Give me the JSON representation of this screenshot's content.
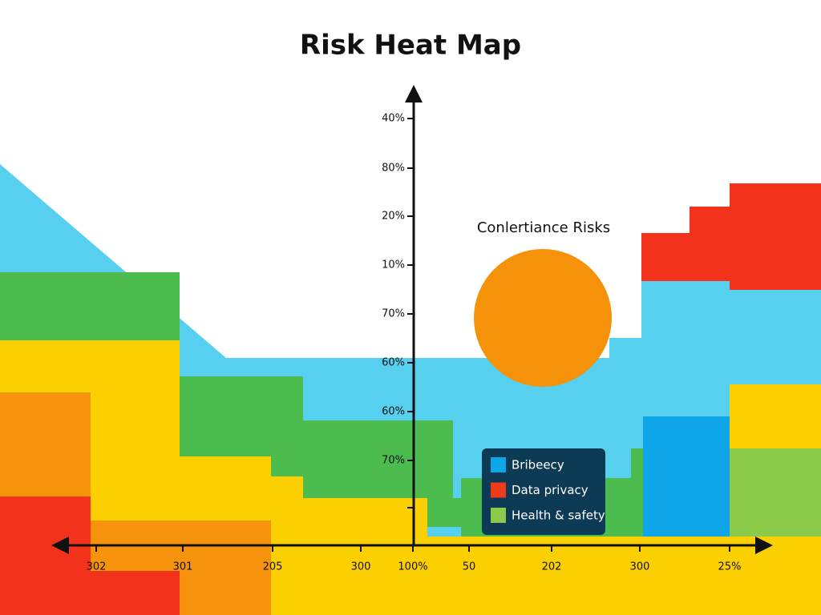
{
  "title": "Risk Heat Map",
  "annotation": "Conlertiance Risks",
  "y_axis_labels": [
    "40%",
    "80%",
    "20%",
    "10%",
    "70%",
    "60%",
    "60%",
    "70%"
  ],
  "x_axis_labels": [
    "302",
    "301",
    "205",
    "300",
    "100%",
    "50",
    "202",
    "300",
    "25%"
  ],
  "legend": [
    {
      "label": "Bribeecy",
      "color": "#0ea5e9"
    },
    {
      "label": "Data privacy",
      "color": "#f03a1c"
    },
    {
      "label": "Health & safety",
      "color": "#8ccb4a"
    }
  ]
}
